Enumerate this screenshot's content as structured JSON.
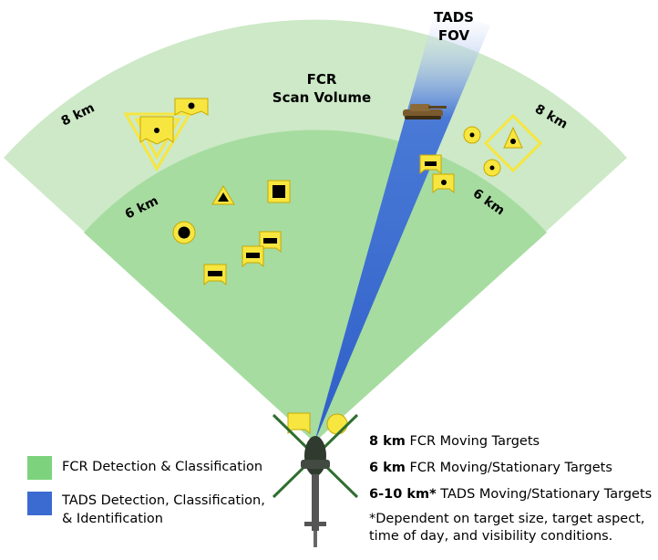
{
  "diagram": {
    "fov_label_line1": "TADS",
    "fov_label_line2": "FOV",
    "scan_label_line1": "FCR",
    "scan_label_line2": "Scan Volume",
    "range_outer": "8 km",
    "range_inner": "6 km",
    "colors": {
      "outer_band": "#cde9c7",
      "inner_band": "#a6dca0",
      "tads_beam": "#3b6bd0",
      "symbol_fill": "#f7e640",
      "symbol_stroke": "#c9a800",
      "symbol_core": "#000000"
    }
  },
  "legend": {
    "fcr_label": "FCR Detection & Classification",
    "tads_label_line1": "TADS Detection, Classification,",
    "tads_label_line2": "& Identification",
    "fcr_color": "#7dd37d",
    "tads_color": "#3b6bd0"
  },
  "notes": [
    {
      "bold": "8 km",
      "text": " FCR Moving Targets"
    },
    {
      "bold": "6 km",
      "text": " FCR Moving/Stationary Targets"
    },
    {
      "bold": "6-10 km*",
      "text": " TADS Moving/Stationary Targets"
    }
  ],
  "footnote_line1": "*Dependent on target size, target aspect,",
  "footnote_line2": "time of day, and visibility conditions."
}
